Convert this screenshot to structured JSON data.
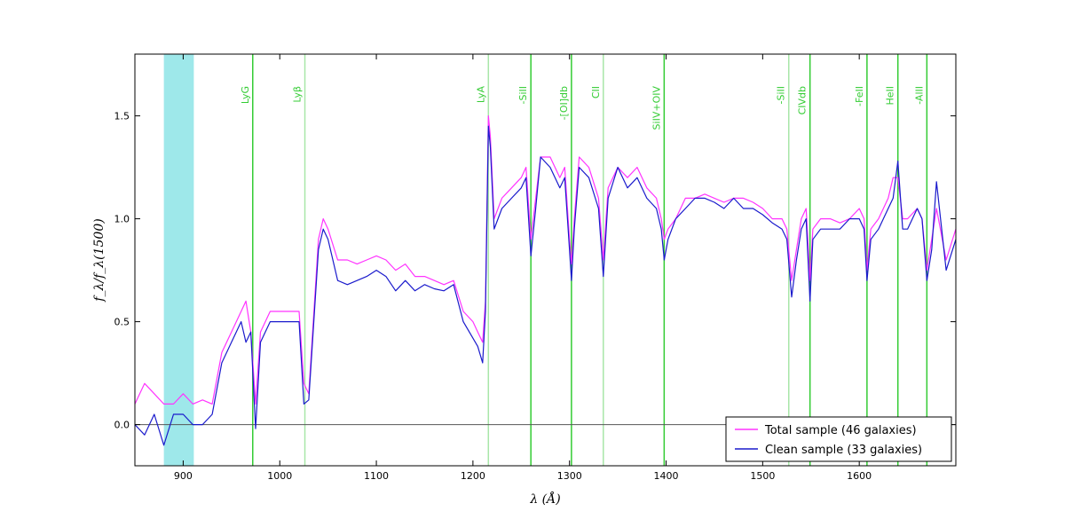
{
  "chart_data": {
    "type": "line",
    "xlabel": "λ (Å)",
    "ylabel": "f_λ/f_λ(1500)",
    "xlim": [
      850,
      1700
    ],
    "ylim": [
      -0.2,
      1.8
    ],
    "x_ticks": [
      900,
      1000,
      1100,
      1200,
      1300,
      1400,
      1500,
      1600
    ],
    "y_ticks": [
      0.0,
      0.5,
      1.0,
      1.5
    ],
    "y_tick_labels": [
      "0.0",
      "0.5",
      "1.0",
      "1.5"
    ],
    "grid": false,
    "zero_line": 0.0,
    "legend_placement": "lower-right",
    "shaded_band": {
      "x_from": 880,
      "x_to": 911,
      "color": "#9ee8ea"
    },
    "reference_lines": [
      {
        "label": "LyG",
        "x": 972,
        "color": "#33cc33"
      },
      {
        "label": "Lyβ",
        "x": 1026,
        "color": "#a8e6a8"
      },
      {
        "label": "LyA",
        "x": 1216,
        "color": "#a8e6a8"
      },
      {
        "label": "-SiII",
        "x": 1260,
        "color": "#33cc33"
      },
      {
        "label": "-[OI]db",
        "x": 1302,
        "color": "#33cc33"
      },
      {
        "label": "CII",
        "x": 1335,
        "color": "#a8e6a8"
      },
      {
        "label": "SiIV+OIV",
        "x": 1398,
        "color": "#33cc33"
      },
      {
        "label": "-SiII",
        "x": 1527,
        "color": "#a8e6a8"
      },
      {
        "label": "CIVdb",
        "x": 1549,
        "color": "#33cc33"
      },
      {
        "label": "-FeII",
        "x": 1608,
        "color": "#33cc33"
      },
      {
        "label": "HeII",
        "x": 1640,
        "color": "#33cc33"
      },
      {
        "label": "-AlII",
        "x": 1670,
        "color": "#33cc33"
      }
    ],
    "series": [
      {
        "name": "Total sample (46 galaxies)",
        "color": "#ff33ff",
        "x": [
          850,
          860,
          870,
          880,
          890,
          900,
          910,
          920,
          930,
          940,
          950,
          960,
          965,
          970,
          975,
          980,
          990,
          1000,
          1010,
          1020,
          1025,
          1030,
          1040,
          1045,
          1050,
          1060,
          1070,
          1080,
          1090,
          1100,
          1110,
          1120,
          1130,
          1140,
          1150,
          1160,
          1170,
          1180,
          1190,
          1200,
          1205,
          1210,
          1213,
          1216,
          1218,
          1222,
          1230,
          1240,
          1250,
          1255,
          1260,
          1265,
          1270,
          1280,
          1290,
          1295,
          1300,
          1302,
          1305,
          1310,
          1320,
          1330,
          1335,
          1340,
          1350,
          1360,
          1370,
          1380,
          1390,
          1395,
          1398,
          1402,
          1410,
          1420,
          1430,
          1440,
          1450,
          1460,
          1470,
          1480,
          1490,
          1500,
          1510,
          1520,
          1525,
          1530,
          1535,
          1540,
          1545,
          1549,
          1552,
          1560,
          1570,
          1580,
          1590,
          1600,
          1605,
          1608,
          1612,
          1620,
          1630,
          1635,
          1640,
          1645,
          1650,
          1660,
          1665,
          1670,
          1675,
          1680,
          1690,
          1700
        ],
        "y": [
          0.1,
          0.2,
          0.15,
          0.1,
          0.1,
          0.15,
          0.1,
          0.12,
          0.1,
          0.35,
          0.45,
          0.55,
          0.6,
          0.45,
          0.1,
          0.45,
          0.55,
          0.55,
          0.55,
          0.55,
          0.2,
          0.15,
          0.9,
          1.0,
          0.95,
          0.8,
          0.8,
          0.78,
          0.8,
          0.82,
          0.8,
          0.75,
          0.78,
          0.72,
          0.72,
          0.7,
          0.68,
          0.7,
          0.55,
          0.5,
          0.45,
          0.4,
          0.6,
          1.5,
          1.4,
          1.0,
          1.1,
          1.15,
          1.2,
          1.25,
          0.9,
          1.1,
          1.3,
          1.3,
          1.2,
          1.25,
          0.9,
          0.78,
          1.0,
          1.3,
          1.25,
          1.1,
          0.8,
          1.15,
          1.25,
          1.2,
          1.25,
          1.15,
          1.1,
          1.0,
          0.9,
          0.95,
          1.0,
          1.1,
          1.1,
          1.12,
          1.1,
          1.08,
          1.1,
          1.1,
          1.08,
          1.05,
          1.0,
          1.0,
          0.95,
          0.7,
          0.85,
          1.0,
          1.05,
          0.7,
          0.95,
          1.0,
          1.0,
          0.98,
          1.0,
          1.05,
          1.0,
          0.75,
          0.95,
          1.0,
          1.1,
          1.2,
          1.2,
          1.0,
          1.0,
          1.05,
          1.0,
          0.75,
          0.9,
          1.05,
          0.8,
          0.95
        ]
      },
      {
        "name": "Clean sample (33 galaxies)",
        "color": "#1a1acc",
        "x": [
          850,
          860,
          870,
          880,
          890,
          900,
          910,
          920,
          930,
          940,
          950,
          960,
          965,
          970,
          975,
          980,
          990,
          1000,
          1010,
          1020,
          1025,
          1030,
          1040,
          1045,
          1050,
          1060,
          1070,
          1080,
          1090,
          1100,
          1110,
          1120,
          1130,
          1140,
          1150,
          1160,
          1170,
          1180,
          1190,
          1200,
          1205,
          1210,
          1213,
          1216,
          1218,
          1222,
          1230,
          1240,
          1250,
          1255,
          1260,
          1265,
          1270,
          1280,
          1290,
          1295,
          1300,
          1302,
          1305,
          1310,
          1320,
          1330,
          1335,
          1340,
          1350,
          1360,
          1370,
          1380,
          1390,
          1395,
          1398,
          1402,
          1410,
          1420,
          1430,
          1440,
          1450,
          1460,
          1470,
          1480,
          1490,
          1500,
          1510,
          1520,
          1525,
          1530,
          1535,
          1540,
          1545,
          1549,
          1552,
          1560,
          1570,
          1580,
          1590,
          1600,
          1605,
          1608,
          1612,
          1620,
          1630,
          1635,
          1640,
          1645,
          1650,
          1660,
          1665,
          1670,
          1675,
          1680,
          1690,
          1700
        ],
        "y": [
          0.0,
          -0.05,
          0.05,
          -0.1,
          0.05,
          0.05,
          0.0,
          0.0,
          0.05,
          0.3,
          0.4,
          0.5,
          0.4,
          0.45,
          -0.02,
          0.4,
          0.5,
          0.5,
          0.5,
          0.5,
          0.1,
          0.12,
          0.85,
          0.95,
          0.9,
          0.7,
          0.68,
          0.7,
          0.72,
          0.75,
          0.72,
          0.65,
          0.7,
          0.65,
          0.68,
          0.66,
          0.65,
          0.68,
          0.5,
          0.42,
          0.38,
          0.3,
          0.55,
          1.45,
          1.35,
          0.95,
          1.05,
          1.1,
          1.15,
          1.2,
          0.82,
          1.05,
          1.3,
          1.25,
          1.15,
          1.2,
          0.85,
          0.7,
          0.95,
          1.25,
          1.2,
          1.05,
          0.72,
          1.1,
          1.25,
          1.15,
          1.2,
          1.1,
          1.05,
          0.95,
          0.8,
          0.9,
          1.0,
          1.05,
          1.1,
          1.1,
          1.08,
          1.05,
          1.1,
          1.05,
          1.05,
          1.02,
          0.98,
          0.95,
          0.9,
          0.62,
          0.8,
          0.95,
          1.0,
          0.6,
          0.9,
          0.95,
          0.95,
          0.95,
          1.0,
          1.0,
          0.95,
          0.7,
          0.9,
          0.95,
          1.05,
          1.1,
          1.28,
          0.95,
          0.95,
          1.05,
          1.0,
          0.7,
          0.85,
          1.18,
          0.75,
          0.9
        ]
      }
    ]
  }
}
